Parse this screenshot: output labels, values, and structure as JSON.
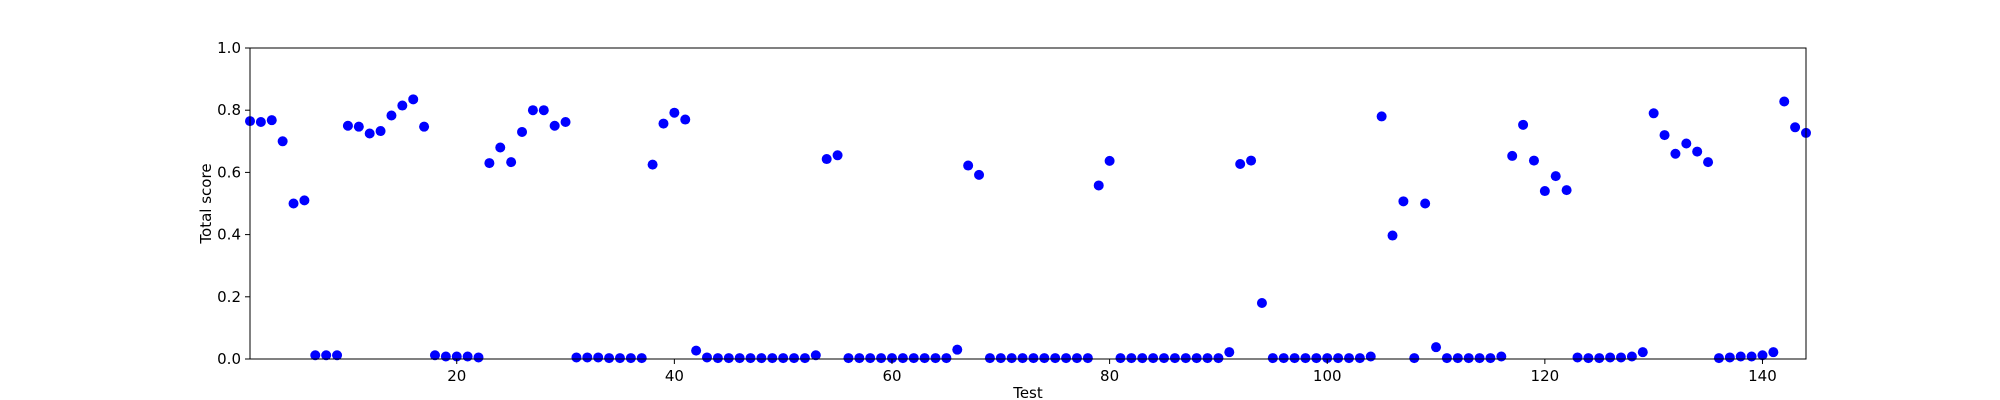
{
  "chart_data": {
    "type": "scatter",
    "title": "",
    "xlabel": "Test",
    "ylabel": "Total score",
    "xlim": [
      1,
      144
    ],
    "ylim": [
      0.0,
      1.0
    ],
    "xticks": [
      20,
      40,
      60,
      80,
      100,
      120,
      140
    ],
    "xtick_labels": [
      "20",
      "40",
      "60",
      "80",
      "100",
      "120",
      "140"
    ],
    "yticks": [
      0.0,
      0.2,
      0.4,
      0.6,
      0.8,
      1.0
    ],
    "ytick_labels": [
      "0.0",
      "0.2",
      "0.4",
      "0.6",
      "0.8",
      "1.0"
    ],
    "grid": false,
    "legend": "none",
    "marker_color": "#0000ff",
    "series": [
      {
        "x": [
          1,
          2,
          3,
          4,
          5,
          6,
          7,
          8,
          9,
          10,
          11,
          12,
          13,
          14,
          15,
          16,
          17,
          18,
          19,
          20,
          21,
          22,
          23,
          24,
          25,
          26,
          27,
          28,
          29,
          30,
          31,
          32,
          33,
          34,
          35,
          36,
          37,
          38,
          39,
          40,
          41,
          42,
          43,
          44,
          45,
          46,
          47,
          48,
          49,
          50,
          51,
          52,
          53,
          54,
          55,
          56,
          57,
          58,
          59,
          60,
          61,
          62,
          63,
          64,
          65,
          66,
          67,
          68,
          69,
          70,
          71,
          72,
          73,
          74,
          75,
          76,
          77,
          78,
          79,
          80,
          81,
          82,
          83,
          84,
          85,
          86,
          87,
          88,
          89,
          90,
          91,
          92,
          93,
          94,
          95,
          96,
          97,
          98,
          99,
          100,
          101,
          102,
          103,
          104,
          105,
          106,
          107,
          108,
          109,
          110,
          111,
          112,
          113,
          114,
          115,
          116,
          117,
          118,
          119,
          120,
          121,
          122,
          123,
          124,
          125,
          126,
          127,
          128,
          129,
          130,
          131,
          132,
          133,
          134,
          135,
          136,
          137,
          138,
          139,
          140,
          141,
          142,
          143,
          144
        ],
        "y": [
          0.765,
          0.762,
          0.768,
          0.7,
          0.5,
          0.51,
          0.012,
          0.012,
          0.012,
          0.75,
          0.747,
          0.725,
          0.733,
          0.783,
          0.815,
          0.835,
          0.747,
          0.012,
          0.008,
          0.008,
          0.008,
          0.005,
          0.63,
          0.68,
          0.633,
          0.73,
          0.8,
          0.8,
          0.75,
          0.762,
          0.005,
          0.005,
          0.005,
          0.003,
          0.003,
          0.003,
          0.003,
          0.625,
          0.757,
          0.792,
          0.77,
          0.027,
          0.005,
          0.003,
          0.003,
          0.003,
          0.003,
          0.003,
          0.003,
          0.003,
          0.003,
          0.003,
          0.012,
          0.643,
          0.655,
          0.003,
          0.003,
          0.003,
          0.003,
          0.003,
          0.003,
          0.003,
          0.003,
          0.003,
          0.003,
          0.03,
          0.622,
          0.592,
          0.003,
          0.003,
          0.003,
          0.003,
          0.003,
          0.003,
          0.003,
          0.003,
          0.003,
          0.003,
          0.558,
          0.637,
          0.003,
          0.003,
          0.003,
          0.003,
          0.003,
          0.003,
          0.003,
          0.003,
          0.003,
          0.003,
          0.022,
          0.627,
          0.638,
          0.18,
          0.003,
          0.003,
          0.003,
          0.003,
          0.003,
          0.003,
          0.003,
          0.003,
          0.003,
          0.008,
          0.78,
          0.397,
          0.507,
          0.003,
          0.5,
          0.038,
          0.003,
          0.003,
          0.003,
          0.003,
          0.003,
          0.008,
          0.653,
          0.753,
          0.638,
          0.54,
          0.588,
          0.543,
          0.005,
          0.003,
          0.003,
          0.005,
          0.005,
          0.008,
          0.022,
          0.79,
          0.72,
          0.66,
          0.693,
          0.667,
          0.633,
          0.003,
          0.005,
          0.008,
          0.008,
          0.012,
          0.022,
          0.828,
          0.745,
          0.727
        ]
      }
    ]
  }
}
